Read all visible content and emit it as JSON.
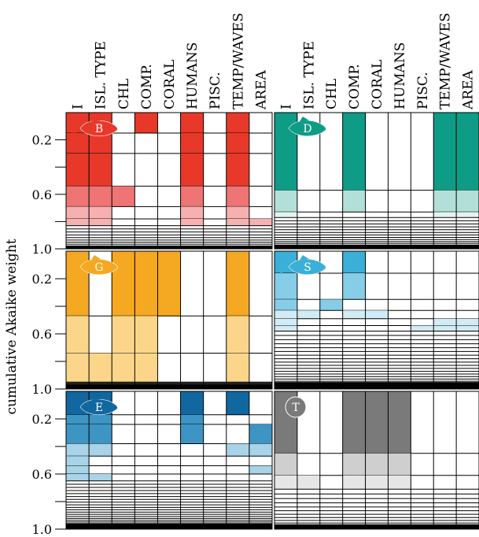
{
  "chart_data": {
    "type": "heatmap",
    "ylabel": "cumulative Akaike weight",
    "y_ticks": [
      "0.2",
      "0.6",
      "1.0"
    ],
    "ylim": [
      0,
      1
    ],
    "columns": [
      "I",
      "ISL. TYPE",
      "CHL",
      "COMP.",
      "CORAL",
      "HUMANS",
      "PISC.",
      "TEMP/WAVES",
      "AREA"
    ],
    "tiers": [
      "high",
      "mid",
      "low"
    ],
    "panels": [
      {
        "label": "B",
        "icon": "fish-icon",
        "colors": {
          "high": "#e8382a",
          "mid": "#ef7474",
          "low": "#f6b0b0"
        },
        "rows": [
          {
            "w": 0.15,
            "v": [
              1,
              1,
              0,
              1,
              0,
              1,
              0,
              1,
              0
            ],
            "t": "high"
          },
          {
            "w": 0.15,
            "v": [
              1,
              1,
              0,
              0,
              0,
              1,
              0,
              1,
              0
            ],
            "t": "high"
          },
          {
            "w": 0.24,
            "v": [
              1,
              1,
              0,
              0,
              0,
              1,
              0,
              1,
              0
            ],
            "t": "high"
          },
          {
            "w": 0.15,
            "v": [
              1,
              1,
              1,
              0,
              0,
              1,
              0,
              1,
              0
            ],
            "t": "mid"
          },
          {
            "w": 0.09,
            "v": [
              1,
              1,
              0,
              0,
              0,
              1,
              0,
              1,
              0
            ],
            "t": "low"
          },
          {
            "w": 0.05,
            "v": [
              1,
              1,
              0,
              0,
              0,
              1,
              0,
              1,
              1
            ],
            "t": "low"
          }
        ],
        "tail": 0.17,
        "tail_lines": 10
      },
      {
        "label": "D",
        "icon": "fish-icon",
        "colors": {
          "high": "#0e9c86",
          "mid": "#b2e0d8",
          "low": "#e3f4f0"
        },
        "rows": [
          {
            "w": 0.57,
            "v": [
              1,
              0,
              0,
              1,
              0,
              0,
              0,
              1,
              1
            ],
            "t": "high"
          },
          {
            "w": 0.16,
            "v": [
              1,
              0,
              0,
              1,
              0,
              0,
              0,
              1,
              1
            ],
            "t": "mid"
          },
          {
            "w": 0.04,
            "v": [
              1,
              0,
              0,
              0,
              0,
              0,
              0,
              1,
              1
            ],
            "t": "low"
          }
        ],
        "tail": 0.23,
        "tail_lines": 14
      },
      {
        "label": "G",
        "icon": "fish-icon",
        "colors": {
          "high": "#f5a821",
          "mid": "#fbd68a",
          "low": "#fde9bf"
        },
        "rows": [
          {
            "w": 0.47,
            "v": [
              1,
              0,
              1,
              1,
              1,
              0,
              0,
              1,
              0
            ],
            "t": "high"
          },
          {
            "w": 0.27,
            "v": [
              1,
              0,
              1,
              1,
              0,
              0,
              0,
              1,
              0
            ],
            "t": "mid"
          },
          {
            "w": 0.21,
            "v": [
              1,
              1,
              1,
              1,
              0,
              0,
              0,
              1,
              0
            ],
            "t": "mid"
          }
        ],
        "tail": 0.05,
        "tail_lines": 12
      },
      {
        "label": "S",
        "icon": "fish-icon",
        "colors": {
          "high": "#3aafd8",
          "mid": "#86cde7",
          "low": "#d2ecf6"
        },
        "rows": [
          {
            "w": 0.16,
            "v": [
              1,
              0,
              0,
              1,
              0,
              0,
              0,
              0,
              0
            ],
            "t": "high"
          },
          {
            "w": 0.19,
            "v": [
              1,
              0,
              0,
              1,
              0,
              0,
              0,
              0,
              0
            ],
            "t": "mid"
          },
          {
            "w": 0.08,
            "v": [
              1,
              0,
              1,
              0,
              0,
              0,
              0,
              0,
              0
            ],
            "t": "mid"
          },
          {
            "w": 0.06,
            "v": [
              1,
              1,
              0,
              1,
              1,
              0,
              0,
              0,
              0
            ],
            "t": "low"
          },
          {
            "w": 0.05,
            "v": [
              1,
              0,
              0,
              0,
              0,
              0,
              0,
              1,
              1
            ],
            "t": "low"
          },
          {
            "w": 0.04,
            "v": [
              1,
              0,
              0,
              0,
              0,
              0,
              1,
              1,
              1
            ],
            "t": "low"
          }
        ],
        "tail": 0.42,
        "tail_lines": 20
      },
      {
        "label": "E",
        "icon": "fish-icon",
        "colors": {
          "high": "#1167a0",
          "mid": "#3d95c3",
          "low": "#a8d3e8"
        },
        "rows": [
          {
            "w": 0.17,
            "v": [
              1,
              1,
              0,
              0,
              0,
              1,
              0,
              1,
              0
            ],
            "t": "high"
          },
          {
            "w": 0.07,
            "v": [
              1,
              1,
              0,
              0,
              0,
              1,
              0,
              0,
              0
            ],
            "t": "mid"
          },
          {
            "w": 0.14,
            "v": [
              1,
              1,
              0,
              0,
              0,
              1,
              0,
              0,
              1
            ],
            "t": "mid"
          },
          {
            "w": 0.09,
            "v": [
              1,
              1,
              0,
              0,
              0,
              0,
              0,
              1,
              1
            ],
            "t": "low"
          },
          {
            "w": 0.07,
            "v": [
              1,
              0,
              0,
              0,
              0,
              0,
              0,
              0,
              0
            ],
            "t": "low"
          },
          {
            "w": 0.06,
            "v": [
              1,
              0,
              0,
              0,
              0,
              0,
              0,
              0,
              1
            ],
            "t": "low"
          },
          {
            "w": 0.05,
            "v": [
              1,
              1,
              0,
              0,
              0,
              0,
              0,
              0,
              0
            ],
            "t": "low"
          }
        ],
        "tail": 0.35,
        "tail_lines": 22
      },
      {
        "label": "T",
        "icon": "circle-icon",
        "colors": {
          "high": "#7a7a7a",
          "mid": "#cfcfcf",
          "low": "#e6e6e6"
        },
        "rows": [
          {
            "w": 0.45,
            "v": [
              1,
              0,
              0,
              1,
              1,
              1,
              0,
              0,
              0
            ],
            "t": "high"
          },
          {
            "w": 0.16,
            "v": [
              1,
              0,
              0,
              1,
              1,
              1,
              0,
              0,
              0
            ],
            "t": "mid"
          },
          {
            "w": 0.1,
            "v": [
              1,
              1,
              0,
              1,
              1,
              1,
              0,
              0,
              0
            ],
            "t": "low"
          }
        ],
        "tail": 0.29,
        "tail_lines": 12
      }
    ]
  }
}
